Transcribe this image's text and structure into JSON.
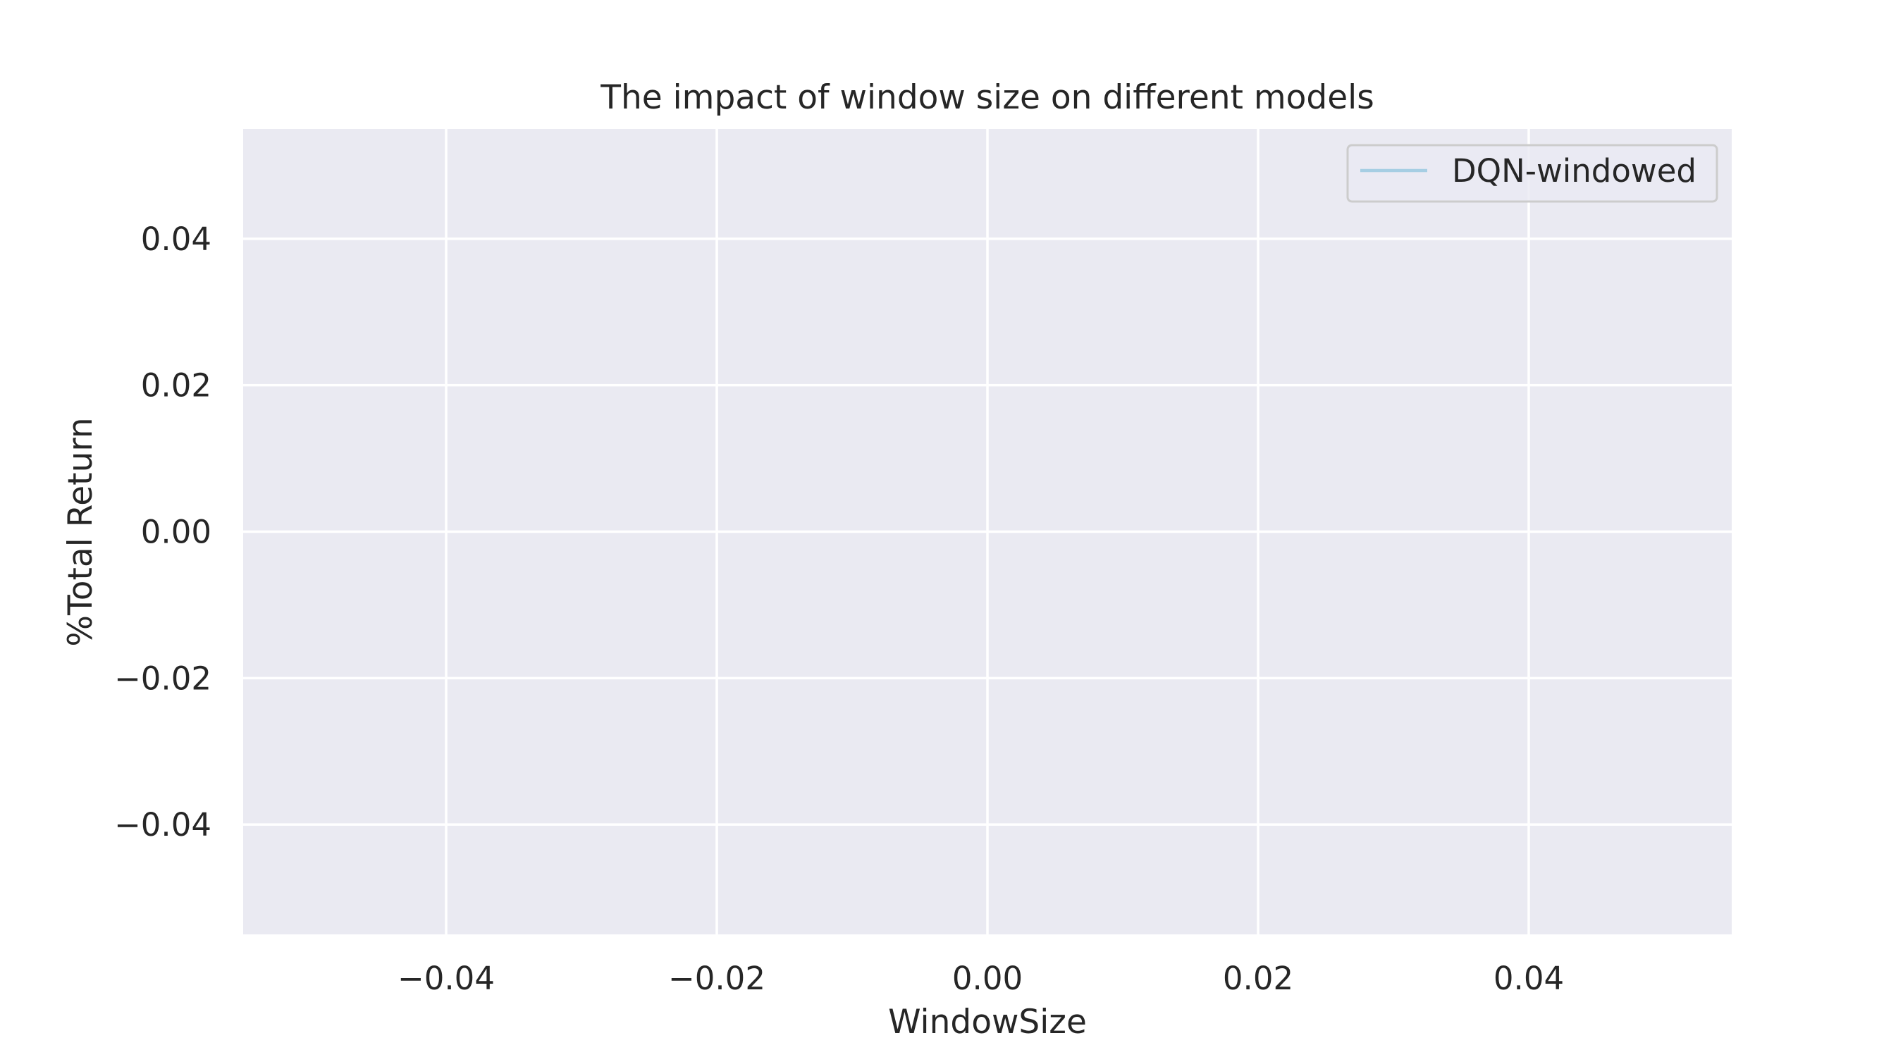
{
  "chart_data": {
    "type": "line",
    "title": "The impact of window size on different models",
    "xlabel": "WindowSize",
    "ylabel": "%Total Return",
    "xlim": [
      -0.055,
      0.055
    ],
    "ylim": [
      -0.055,
      0.055
    ],
    "xticks": [
      -0.04,
      -0.02,
      0.0,
      0.02,
      0.04
    ],
    "yticks": [
      -0.04,
      -0.02,
      0.0,
      0.02,
      0.04
    ],
    "xtick_labels": [
      "−0.04",
      "−0.02",
      "0.00",
      "0.02",
      "0.04"
    ],
    "ytick_labels": [
      "−0.04",
      "−0.02",
      "0.00",
      "0.02",
      "0.04"
    ],
    "grid": true,
    "legend_position": "top-right",
    "series": [
      {
        "name": "DQN-windowed",
        "color": "#a6cee3",
        "x": [],
        "y": []
      }
    ],
    "colors": {
      "plot_background": "#eaeaf2",
      "grid": "#ffffff",
      "text": "#262626",
      "legend_border": "#cccccc"
    }
  }
}
